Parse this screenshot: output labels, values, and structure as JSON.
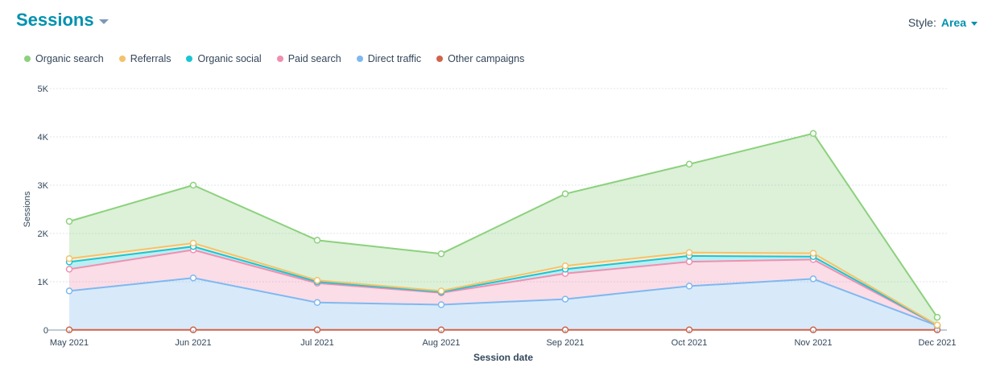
{
  "header": {
    "title": "Sessions"
  },
  "style_control": {
    "label": "Style:",
    "value": "Area"
  },
  "chart_data": {
    "type": "area",
    "stacked": true,
    "x": [
      "May 2021",
      "Jun 2021",
      "Jul 2021",
      "Aug 2021",
      "Sep 2021",
      "Oct 2021",
      "Nov 2021",
      "Dec 2021"
    ],
    "xlabel": "Session date",
    "ylabel": "Sessions",
    "ylim": [
      0,
      5000
    ],
    "yticks": [
      0,
      1000,
      2000,
      3000,
      4000,
      5000
    ],
    "ytick_labels": [
      "0",
      "1K",
      "2K",
      "3K",
      "4K",
      "5K"
    ],
    "grid": true,
    "legend_position": "top-left",
    "series": [
      {
        "name": "Other campaigns",
        "color": "#d0644a",
        "values": [
          5,
          5,
          5,
          5,
          5,
          5,
          5,
          5
        ]
      },
      {
        "name": "Direct traffic",
        "color": "#7fb8f0",
        "values": [
          805,
          1075,
          565,
          520,
          635,
          905,
          1055,
          85
        ]
      },
      {
        "name": "Paid search",
        "color": "#f08fb0",
        "values": [
          450,
          580,
          400,
          245,
          530,
          505,
          400,
          5
        ]
      },
      {
        "name": "Organic social",
        "color": "#19c6d4",
        "values": [
          150,
          70,
          30,
          20,
          90,
          120,
          60,
          5
        ]
      },
      {
        "name": "Referrals",
        "color": "#f5c26b",
        "values": [
          70,
          70,
          30,
          20,
          70,
          70,
          70,
          5
        ]
      },
      {
        "name": "Organic search",
        "color": "#8cd17d",
        "values": [
          770,
          1200,
          830,
          770,
          1490,
          1830,
          2480,
          160
        ]
      }
    ]
  }
}
